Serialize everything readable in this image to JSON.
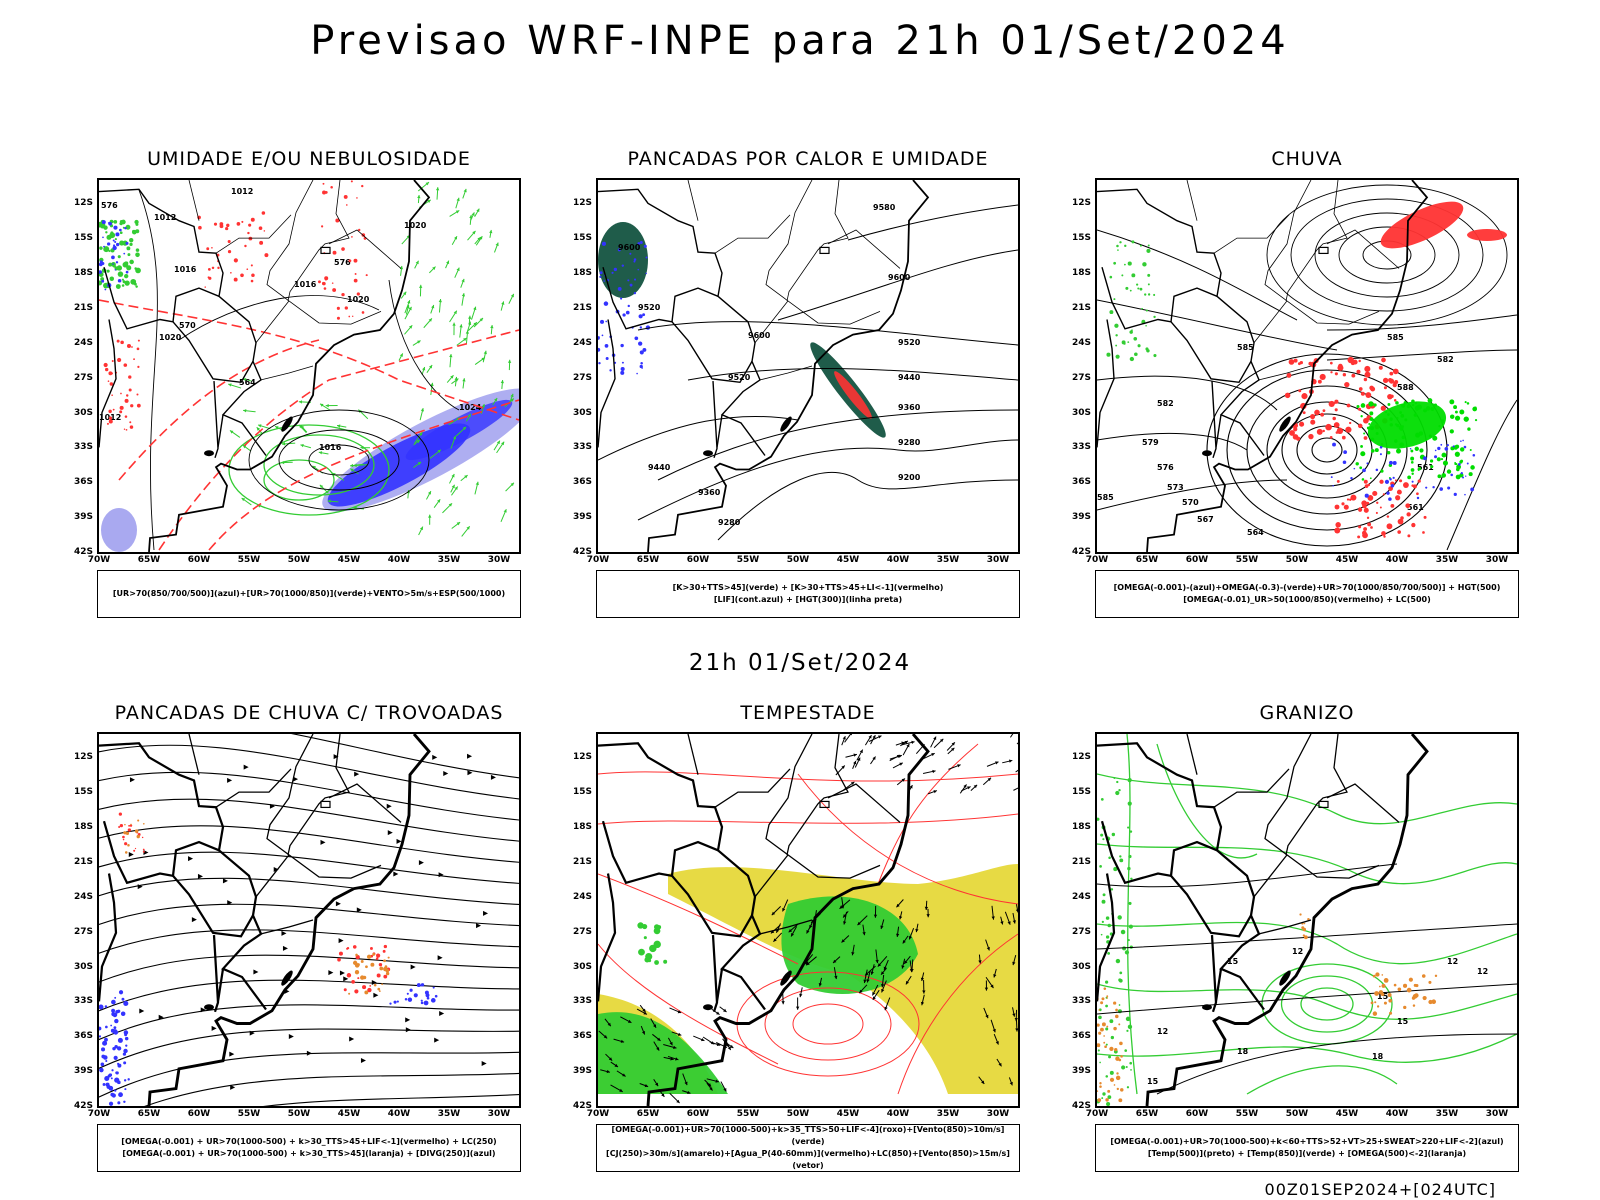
{
  "title": "Previsao WRF-INPE  para 21h 01/Set/2024",
  "mid_title": "21h 01/Set/2024",
  "footer": "00Z01SEP2024+[024UTC]",
  "axes": {
    "lat_labels": [
      "12S",
      "15S",
      "18S",
      "21S",
      "24S",
      "27S",
      "30S",
      "33S",
      "36S",
      "39S",
      "42S"
    ],
    "lon_labels": [
      "70W",
      "65W",
      "60W",
      "55W",
      "50W",
      "45W",
      "40W",
      "35W",
      "30W"
    ]
  },
  "colors": {
    "blue": "#3333ff",
    "lavender": "#a0a0ee",
    "green": "#33cc33",
    "bright_green": "#00dd00",
    "red": "#ff3333",
    "yellow": "#e6d83a",
    "dark_teal": "#1f5c4a",
    "orange": "#e68a2e"
  },
  "panels": [
    {
      "id": "umidade",
      "title": "UMIDADE E/OU NEBULOSIDADE",
      "legend": [
        "[UR>70(850/700/500)](azul)+[UR>70(1000/850)](verde)+VENTO>5m/s+ESP(500/1000)"
      ],
      "contour_labels": [
        "1012",
        "1012",
        "1016",
        "1016",
        "1020",
        "1020",
        "1020",
        "1024",
        "576",
        "576",
        "570",
        "564",
        "1012",
        "1016"
      ]
    },
    {
      "id": "pancadas-calor",
      "title": "PANCADAS POR CALOR E UMIDADE",
      "legend": [
        "[K>30+TTS>45](verde) + [K>30+TTS>45+LI<-1](vermelho)",
        "[LIF](cont.azul) + [HGT(300)](linha preta)"
      ],
      "contour_labels": [
        "9600",
        "9580",
        "9600",
        "9520",
        "9520",
        "9600",
        "9520",
        "9440",
        "9360",
        "9280",
        "9200",
        "9440",
        "9360",
        "9280"
      ]
    },
    {
      "id": "chuva",
      "title": "CHUVA",
      "legend": [
        "[OMEGA(-0.001)-(azul)+OMEGA(-0.3)-(verde)+UR>70(1000/850/700/500)] + HGT(500)",
        "[OMEGA(-0.01)_UR>50(1000/850)(vermelho) + LC(500)"
      ],
      "contour_labels": [
        "585",
        "585",
        "582",
        "582",
        "579",
        "576",
        "573",
        "570",
        "567",
        "564",
        "588",
        "561",
        "561",
        "585"
      ]
    },
    {
      "id": "pancadas-trovoadas",
      "title": "PANCADAS DE CHUVA C/ TROVOADAS",
      "legend": [
        "[OMEGA(-0.001) + UR>70(1000-500) + k>30_TTS>45+LIF<-1](vermelho) + LC(250)",
        "[OMEGA(-0.001) + UR>70(1000-500) + k>30_TTS>45](laranja) + [DIVG(250)](azul)"
      ],
      "contour_labels": []
    },
    {
      "id": "tempestade",
      "title": "TEMPESTADE",
      "legend": [
        "[OMEGA(-0.001)+UR>70(1000-500)+k>35_TTS>50+LIF<-4](roxo)+[Vento(850)>10m/s](verde)",
        "[CJ(250)>30m/s](amarelo)+[Agua_P(40-60mm)](vermelho)+LC(850)+[Vento(850)>15m/s](vetor)"
      ],
      "contour_labels": []
    },
    {
      "id": "granizo",
      "title": "GRANIZO",
      "legend": [
        "[OMEGA(-0.001)+UR>70(1000-500)+k<60+TTS>52+VT>25+SWEAT>220+LIF<-2](azul)",
        "[Temp(500)](preto) + [Temp(850)](verde) + [OMEGA(500)<-2](laranja)"
      ],
      "contour_labels": [
        "12",
        "12",
        "12",
        "15",
        "15",
        "15",
        "18",
        "18",
        "12",
        "15"
      ]
    }
  ]
}
